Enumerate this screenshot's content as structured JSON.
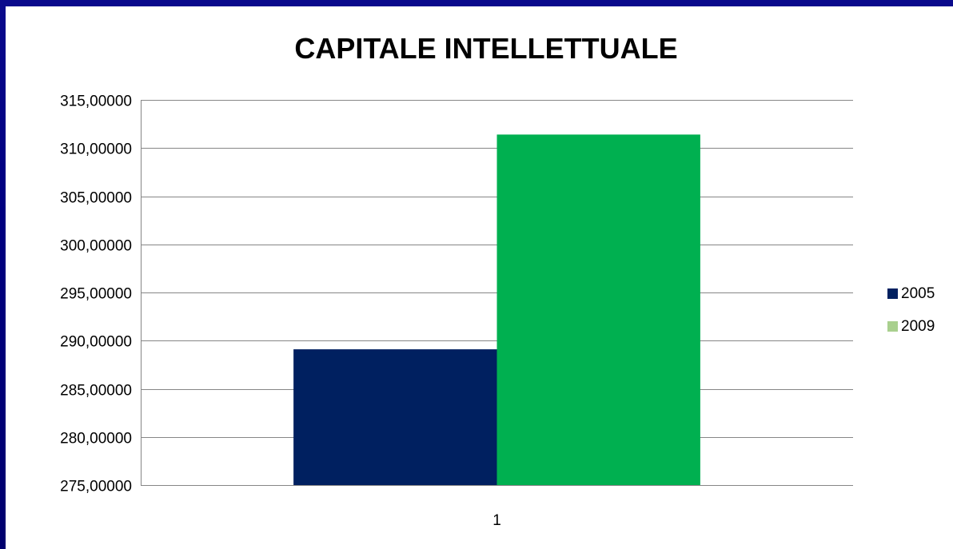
{
  "chart_data": {
    "type": "bar",
    "title": "CAPITALE INTELLETTUALE",
    "categories": [
      "1"
    ],
    "series": [
      {
        "name": "2005",
        "values": [
          289.1
        ],
        "color": "#002060"
      },
      {
        "name": "2009",
        "values": [
          311.4
        ],
        "color": "#00b050"
      }
    ],
    "legend_colors": {
      "2005": "#002060",
      "2009": "#a9d08e"
    },
    "ylim": [
      275,
      315
    ],
    "yticks": [
      "275,00000",
      "280,00000",
      "285,00000",
      "290,00000",
      "295,00000",
      "300,00000",
      "305,00000",
      "310,00000",
      "315,00000"
    ],
    "ytick_values": [
      275,
      280,
      285,
      290,
      295,
      300,
      305,
      310,
      315
    ],
    "grid": true,
    "legend_position": "right",
    "xlabel": "",
    "ylabel": ""
  },
  "colors": {
    "background": "#000080",
    "plot_background": "#ffffff",
    "gridline": "#868686"
  }
}
